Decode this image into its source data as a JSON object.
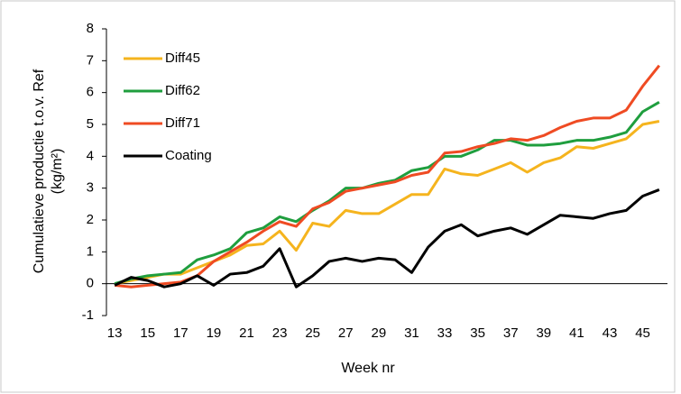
{
  "chart_data": {
    "type": "line",
    "x_label": "Week nr",
    "y_label": [
      "Cumulatieve productie t.o.v. Ref",
      "(kg/m²)"
    ],
    "x": [
      13,
      14,
      15,
      16,
      17,
      18,
      19,
      20,
      21,
      22,
      23,
      24,
      25,
      26,
      27,
      28,
      29,
      30,
      31,
      32,
      33,
      34,
      35,
      36,
      37,
      38,
      39,
      40,
      41,
      42,
      43,
      44,
      45,
      46
    ],
    "xlim": [
      12.5,
      46.5
    ],
    "xticks": [
      13,
      15,
      17,
      19,
      21,
      23,
      25,
      27,
      29,
      31,
      33,
      35,
      37,
      39,
      41,
      43,
      45
    ],
    "ylim": [
      -1,
      8
    ],
    "yticks": [
      -1,
      0,
      1,
      2,
      3,
      4,
      5,
      6,
      7,
      8
    ],
    "legend": "upper left",
    "series": [
      {
        "name": "Diff45",
        "color": "#f5b41e",
        "values": [
          0.0,
          0.1,
          0.2,
          0.3,
          0.3,
          0.5,
          0.7,
          0.9,
          1.2,
          1.25,
          1.65,
          1.05,
          1.9,
          1.8,
          2.3,
          2.2,
          2.2,
          2.5,
          2.8,
          2.8,
          3.6,
          3.45,
          3.4,
          3.6,
          3.8,
          3.5,
          3.8,
          3.95,
          4.3,
          4.25,
          4.4,
          4.55,
          5.0,
          5.1
        ]
      },
      {
        "name": "Diff62",
        "color": "#1f9e3e",
        "values": [
          0.0,
          0.15,
          0.25,
          0.3,
          0.35,
          0.75,
          0.9,
          1.1,
          1.6,
          1.75,
          2.1,
          1.95,
          2.3,
          2.6,
          3.0,
          3.0,
          3.15,
          3.25,
          3.55,
          3.65,
          4.0,
          4.0,
          4.2,
          4.5,
          4.5,
          4.35,
          4.35,
          4.4,
          4.5,
          4.5,
          4.6,
          4.75,
          5.4,
          5.7
        ]
      },
      {
        "name": "Diff71",
        "color": "#ef4b23",
        "values": [
          -0.05,
          -0.1,
          -0.05,
          0.0,
          0.05,
          0.25,
          0.7,
          1.0,
          1.3,
          1.65,
          1.95,
          1.8,
          2.35,
          2.55,
          2.9,
          3.0,
          3.1,
          3.2,
          3.4,
          3.5,
          4.1,
          4.15,
          4.3,
          4.4,
          4.55,
          4.5,
          4.65,
          4.9,
          5.1,
          5.2,
          5.2,
          5.45,
          6.2,
          6.85
        ]
      },
      {
        "name": "Coating",
        "color": "#000000",
        "values": [
          -0.05,
          0.2,
          0.1,
          -0.1,
          0.0,
          0.25,
          -0.05,
          0.3,
          0.35,
          0.55,
          1.1,
          -0.1,
          0.25,
          0.7,
          0.8,
          0.7,
          0.8,
          0.75,
          0.35,
          1.15,
          1.65,
          1.85,
          1.5,
          1.65,
          1.75,
          1.55,
          1.85,
          2.15,
          2.1,
          2.05,
          2.2,
          2.3,
          2.75,
          2.95
        ]
      }
    ]
  }
}
